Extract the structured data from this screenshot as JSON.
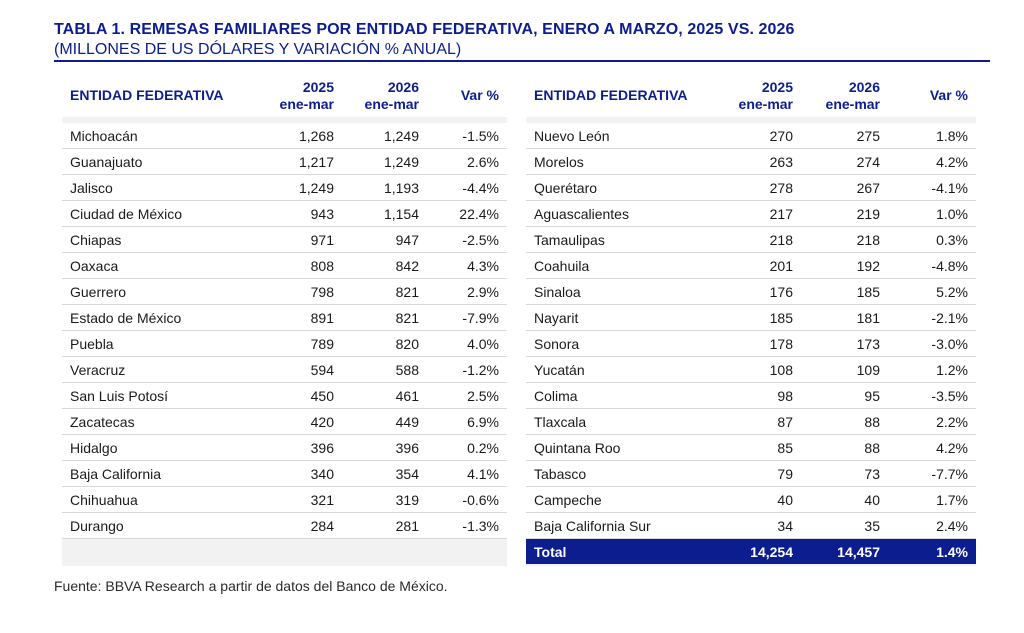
{
  "title": "TABLA 1. REMESAS FAMILIARES POR ENTIDAD FEDERATIVA, ENERO A MARZO, 2025 VS. 2026",
  "subtitle": "(MILLONES DE US DÓLARES Y VARIACIÓN % ANUAL)",
  "headers": {
    "entity": "ENTIDAD FEDERATIVA",
    "y2025_line1": "2025",
    "y2025_line2": "ene-mar",
    "y2026_line1": "2026",
    "y2026_line2": "ene-mar",
    "var": "Var %"
  },
  "left_rows": [
    [
      "Michoacán",
      "1,268",
      "1,249",
      "-1.5%"
    ],
    [
      "Guanajuato",
      "1,217",
      "1,249",
      "2.6%"
    ],
    [
      "Jalisco",
      "1,249",
      "1,193",
      "-4.4%"
    ],
    [
      "Ciudad de México",
      "943",
      "1,154",
      "22.4%"
    ],
    [
      "Chiapas",
      "971",
      "947",
      "-2.5%"
    ],
    [
      "Oaxaca",
      "808",
      "842",
      "4.3%"
    ],
    [
      "Guerrero",
      "798",
      "821",
      "2.9%"
    ],
    [
      "Estado de México",
      "891",
      "821",
      "-7.9%"
    ],
    [
      "Puebla",
      "789",
      "820",
      "4.0%"
    ],
    [
      "Veracruz",
      "594",
      "588",
      "-1.2%"
    ],
    [
      "San Luis Potosí",
      "450",
      "461",
      "2.5%"
    ],
    [
      "Zacatecas",
      "420",
      "449",
      "6.9%"
    ],
    [
      "Hidalgo",
      "396",
      "396",
      "0.2%"
    ],
    [
      "Baja California",
      "340",
      "354",
      "4.1%"
    ],
    [
      "Chihuahua",
      "321",
      "319",
      "-0.6%"
    ],
    [
      "Durango",
      "284",
      "281",
      "-1.3%"
    ]
  ],
  "right_rows": [
    [
      "Nuevo León",
      "270",
      "275",
      "1.8%"
    ],
    [
      "Morelos",
      "263",
      "274",
      "4.2%"
    ],
    [
      "Querétaro",
      "278",
      "267",
      "-4.1%"
    ],
    [
      "Aguascalientes",
      "217",
      "219",
      "1.0%"
    ],
    [
      "Tamaulipas",
      "218",
      "218",
      "0.3%"
    ],
    [
      "Coahuila",
      "201",
      "192",
      "-4.8%"
    ],
    [
      "Sinaloa",
      "176",
      "185",
      "5.2%"
    ],
    [
      "Nayarit",
      "185",
      "181",
      "-2.1%"
    ],
    [
      "Sonora",
      "178",
      "173",
      "-3.0%"
    ],
    [
      "Yucatán",
      "108",
      "109",
      "1.2%"
    ],
    [
      "Colima",
      "98",
      "95",
      "-3.5%"
    ],
    [
      "Tlaxcala",
      "87",
      "88",
      "2.2%"
    ],
    [
      "Quintana Roo",
      "85",
      "88",
      "4.2%"
    ],
    [
      "Tabasco",
      "79",
      "73",
      "-7.7%"
    ],
    [
      "Campeche",
      "40",
      "40",
      "1.7%"
    ],
    [
      "Baja California Sur",
      "34",
      "35",
      "2.4%"
    ]
  ],
  "total": [
    "Total",
    "14,254",
    "14,457",
    "1.4%"
  ],
  "source": "Fuente: BBVA Research a partir de datos del Banco de México.",
  "colors": {
    "accent": "#0c1d8f",
    "panel_bg": "#f2f2f2",
    "rule": "#d8d8d8"
  }
}
